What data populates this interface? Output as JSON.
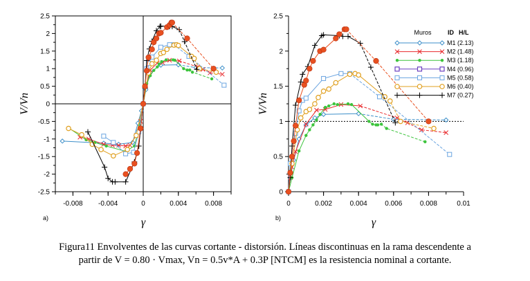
{
  "caption": {
    "line1": "Figura11 Envolventes de las curvas cortante - distorsión. Líneas discontinuas en la rama descendente a",
    "line2": "partir de V = 0.80 · Vmax, Vn = 0.5v*A + 0.3P [NTCM] es la resistencia nominal a cortante."
  },
  "legend": {
    "header_muros": "Muros",
    "header_id": "ID",
    "header_hl": "H/L",
    "entries": [
      "M1 (2.13)",
      "M2 (1.48)",
      "M3 (1.18)",
      "M4 (0.96)",
      "M5 (0.58)",
      "M6 (0.40)",
      "M7 (0.27)"
    ]
  },
  "chart_data": [
    {
      "type": "line",
      "panel": "a)",
      "xlabel": "γ",
      "ylabel": "V/Vn",
      "xlim": [
        -0.01,
        0.01
      ],
      "ylim": [
        -2.5,
        2.5
      ],
      "xticks": [
        -0.008,
        -0.004,
        0,
        0.004,
        0.008
      ],
      "xtick_labels": [
        "-0.008",
        "-0.004",
        "0",
        "0.004",
        "0.008"
      ],
      "yticks": [
        -2.5,
        -2,
        -1.5,
        -1,
        -0.5,
        0,
        0.5,
        1,
        1.5,
        2,
        2.5
      ],
      "ytick_labels": [
        "-2.5",
        "-2",
        "-1.5",
        "-1",
        "-0.5",
        "0",
        "0.5",
        "1",
        "1.5",
        "2",
        "2.5"
      ],
      "zero_lines": true,
      "series": [
        {
          "name": "M1 (2.13)",
          "color": "#3d8fc9",
          "marker": "diamond",
          "x": [
            -0.0092,
            -0.0045,
            -0.0028,
            -0.0012,
            -0.0006,
            -0.0002,
            0,
            0.0003,
            0.0008,
            0.002,
            0.004,
            0.006,
            0.009
          ],
          "y": [
            -1.06,
            -1.12,
            -1.15,
            -1.1,
            -0.55,
            -0.2,
            0,
            0.4,
            0.9,
            1.1,
            1.11,
            1.03,
            1.02
          ],
          "dash_from": 11
        },
        {
          "name": "M2 (1.48)",
          "color": "#e8282b",
          "marker": "x",
          "x": [
            -0.0072,
            -0.0062,
            -0.0045,
            -0.0035,
            -0.0028,
            -0.002,
            -0.0015,
            -0.0008,
            -0.0003,
            0,
            0.0003,
            0.0008,
            0.0016,
            0.0022,
            0.003,
            0.0041,
            0.0062,
            0.0068,
            0.0076,
            0.009
          ],
          "y": [
            -0.95,
            -1.0,
            -1.15,
            -1.18,
            -1.18,
            -1.2,
            -1.18,
            -0.9,
            -0.5,
            0,
            0.5,
            0.96,
            1.16,
            1.17,
            1.24,
            1.22,
            1.05,
            0.98,
            0.88,
            0.84
          ],
          "dash_from": 16
        },
        {
          "name": "M3 (1.18)",
          "color": "#3cc43c",
          "marker": "dot",
          "x": [
            -0.0084,
            -0.0065,
            -0.0055,
            -0.0042,
            -0.002,
            -0.001,
            -0.0004,
            0,
            0.0004,
            0.0008,
            0.0012,
            0.0016,
            0.0018,
            0.0021,
            0.0026,
            0.0034,
            0.0036,
            0.0046,
            0.005,
            0.0053,
            0.0056,
            0.0078
          ],
          "y": [
            -0.7,
            -1.02,
            -1.1,
            -1.2,
            -1.35,
            -1.2,
            -0.6,
            0,
            0.58,
            0.8,
            0.95,
            1.05,
            1.13,
            1.2,
            1.25,
            1.25,
            1.24,
            1.0,
            0.96,
            0.96,
            0.9,
            0.71
          ],
          "dash_from": 18
        },
        {
          "name": "M4 (0.96)",
          "color": "#6a3fc0",
          "marker": "square-dot",
          "x": [],
          "y": []
        },
        {
          "name": "M5 (0.58)",
          "color": "#6aa4e0",
          "marker": "square",
          "x": [
            -0.0045,
            -0.0034,
            -0.002,
            -0.0011,
            -0.0005,
            0,
            0.0004,
            0.0006,
            0.001,
            0.002,
            0.003,
            0.0035,
            0.0052,
            0.0092
          ],
          "y": [
            -0.92,
            -1.1,
            -1.42,
            -1.38,
            -0.8,
            0,
            1.0,
            1.15,
            1.33,
            1.61,
            1.68,
            1.68,
            1.35,
            0.53
          ],
          "dash_from": 12
        },
        {
          "name": "M6 (0.40)",
          "color": "#e0a020",
          "marker": "circle-dot",
          "x": [
            -0.0085,
            -0.007,
            -0.0058,
            -0.0048,
            -0.0034,
            -0.0018,
            -0.0008,
            0,
            0.0006,
            0.001,
            0.0015,
            0.002,
            0.0023,
            0.0027,
            0.0035,
            0.0038,
            0.004,
            0.0055,
            0.0058,
            0.0064,
            0.0083
          ],
          "y": [
            -0.7,
            -0.88,
            -1.15,
            -1.3,
            -1.48,
            -1.3,
            -0.9,
            0,
            0.88,
            1.14,
            1.24,
            1.43,
            1.46,
            1.55,
            1.67,
            1.68,
            1.66,
            1.35,
            1.29,
            1.0,
            0.9
          ],
          "dash_from": 18
        },
        {
          "name": "M7 (0.27)",
          "color": "#000000",
          "marker": "plus",
          "x": [
            -0.0063,
            -0.0044,
            -0.004,
            -0.0035,
            -0.0032,
            -0.002,
            -0.001,
            -0.0005,
            0,
            0.0002,
            0.0004,
            0.0007,
            0.001,
            0.0015,
            0.0019,
            0.002,
            0.003,
            0.0033,
            0.0041,
            0.0047,
            0.0061
          ],
          "y": [
            -0.8,
            -1.8,
            -2.12,
            -2.22,
            -2.22,
            -2.22,
            -1.65,
            -1.2,
            0,
            0.45,
            1.23,
            1.56,
            1.78,
            2.08,
            2.2,
            2.21,
            2.2,
            2.2,
            2.11,
            1.77,
            0.98
          ],
          "dash_from": 19
        },
        {
          "name": "M-red-filled",
          "color": "#e85020",
          "marker": "filled-circle",
          "legend": false,
          "x": [
            -0.002,
            -0.0015,
            -0.001,
            -0.0007,
            -0.0003,
            0,
            0.0002,
            0.0004,
            0.0006,
            0.001,
            0.0012,
            0.0015,
            0.0018,
            0.002,
            0.0027,
            0.003,
            0.0032,
            0.0033,
            0.005,
            0.008
          ],
          "y": [
            -2.0,
            -1.85,
            -1.7,
            -1.4,
            -0.7,
            0,
            0.5,
            0.94,
            1.32,
            1.55,
            1.75,
            1.86,
            2.0,
            2.02,
            2.18,
            2.24,
            2.31,
            2.31,
            1.86,
            1.0
          ],
          "dash_from": 18
        }
      ]
    },
    {
      "type": "line",
      "panel": "b)",
      "xlabel": "γ",
      "ylabel": "V/Vn",
      "xlim": [
        0,
        0.01
      ],
      "ylim": [
        0,
        2.5
      ],
      "xticks": [
        0,
        0.002,
        0.004,
        0.006,
        0.008,
        0.01
      ],
      "xtick_labels": [
        "0",
        "0.002",
        "0.004",
        "0.006",
        "0.008",
        "0.01"
      ],
      "yticks": [
        0,
        0.5,
        1,
        1.5,
        2,
        2.5
      ],
      "ytick_labels": [
        "0",
        "0.5",
        "1",
        "1.5",
        "2",
        "2.5"
      ],
      "reference_line": {
        "y": 1,
        "style": "dotted"
      },
      "legend_position": "top-right",
      "series": [
        {
          "name": "M1 (2.13)",
          "color": "#3d8fc9",
          "marker": "diamond",
          "x": [
            0,
            0.0001,
            0.0003,
            0.0006,
            0.001,
            0.0015,
            0.002,
            0.004,
            0.006,
            0.009
          ],
          "y": [
            0,
            0.2,
            0.45,
            0.75,
            0.95,
            1.05,
            1.1,
            1.11,
            1.03,
            1.02
          ],
          "dash_from": 8
        },
        {
          "name": "M2 (1.48)",
          "color": "#e8282b",
          "marker": "x",
          "x": [
            0,
            0.0001,
            0.0002,
            0.0004,
            0.001,
            0.0016,
            0.0021,
            0.003,
            0.0041,
            0.0062,
            0.0068,
            0.0076,
            0.009
          ],
          "y": [
            0,
            0.2,
            0.35,
            0.57,
            0.96,
            1.16,
            1.17,
            1.24,
            1.22,
            1.05,
            0.98,
            0.88,
            0.84
          ],
          "dash_from": 9
        },
        {
          "name": "M3 (1.18)",
          "color": "#3cc43c",
          "marker": "dot",
          "x": [
            0,
            0.0002,
            0.0006,
            0.001,
            0.0012,
            0.0014,
            0.0016,
            0.0018,
            0.0021,
            0.0023,
            0.0026,
            0.0028,
            0.0034,
            0.0036,
            0.0046,
            0.0048,
            0.005,
            0.0051,
            0.0053,
            0.0056,
            0.0078
          ],
          "y": [
            0,
            0.2,
            0.58,
            0.8,
            0.88,
            0.95,
            1.02,
            1.1,
            1.2,
            1.22,
            1.25,
            1.24,
            1.25,
            1.24,
            1.0,
            0.96,
            0.95,
            0.95,
            0.96,
            0.9,
            0.71
          ],
          "dash_from": 16
        },
        {
          "name": "M4 (0.96)",
          "color": "#6a3fc0",
          "marker": "square-dot",
          "x": [],
          "y": []
        },
        {
          "name": "M5 (0.58)",
          "color": "#6aa4e0",
          "marker": "square",
          "x": [
            0,
            0.0001,
            0.0004,
            0.0006,
            0.0008,
            0.001,
            0.002,
            0.003,
            0.0035,
            0.0052,
            0.0092
          ],
          "y": [
            0,
            0.4,
            0.83,
            1.15,
            1.3,
            1.33,
            1.61,
            1.68,
            1.68,
            1.35,
            0.53
          ],
          "dash_from": 9
        },
        {
          "name": "M6 (0.40)",
          "color": "#e0a020",
          "marker": "circle-dot",
          "x": [
            0,
            0.0002,
            0.0005,
            0.0007,
            0.001,
            0.0012,
            0.0015,
            0.0017,
            0.002,
            0.0023,
            0.0027,
            0.0035,
            0.0038,
            0.004,
            0.0055,
            0.0058,
            0.0064,
            0.0083
          ],
          "y": [
            0,
            0.4,
            0.88,
            1.05,
            1.14,
            1.17,
            1.25,
            1.34,
            1.43,
            1.46,
            1.55,
            1.67,
            1.68,
            1.66,
            1.35,
            1.29,
            1.0,
            0.9
          ],
          "dash_from": 15
        },
        {
          "name": "M7 (0.27)",
          "color": "#000000",
          "marker": "plus",
          "x": [
            0,
            0.0001,
            0.0002,
            0.0004,
            0.0007,
            0.0008,
            0.0011,
            0.0015,
            0.0019,
            0.002,
            0.0029,
            0.0031,
            0.0034,
            0.0041,
            0.0047,
            0.0061
          ],
          "y": [
            0,
            0.2,
            0.65,
            1.23,
            1.56,
            1.67,
            1.78,
            2.08,
            2.22,
            2.23,
            2.22,
            2.21,
            2.21,
            2.11,
            1.77,
            0.98
          ],
          "dash_from": 14
        },
        {
          "name": "M-red-filled",
          "color": "#e85020",
          "marker": "filled-circle",
          "legend": false,
          "x": [
            0,
            0.0001,
            0.0002,
            0.0003,
            0.0004,
            0.0006,
            0.0009,
            0.001,
            0.0012,
            0.0014,
            0.0018,
            0.002,
            0.0027,
            0.0029,
            0.0032,
            0.0033,
            0.005,
            0.008
          ],
          "y": [
            0,
            0.27,
            0.5,
            0.72,
            0.94,
            1.3,
            1.52,
            1.58,
            1.75,
            1.86,
            2.0,
            2.02,
            2.18,
            2.24,
            2.31,
            2.31,
            1.86,
            1.0
          ],
          "dash_from": 16
        }
      ]
    }
  ]
}
